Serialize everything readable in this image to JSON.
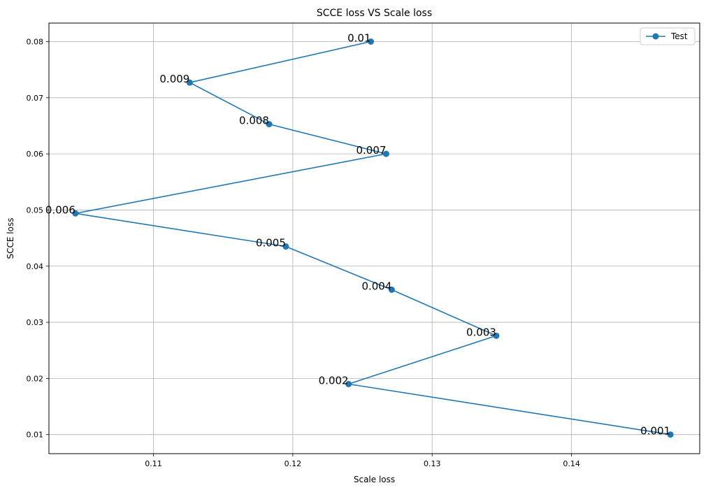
{
  "chart_data": {
    "type": "line",
    "title": "SCCE loss VS Scale loss",
    "xlabel": "Scale loss",
    "ylabel": "SCCE loss",
    "xlim": [
      0.1025,
      0.1492
    ],
    "ylim": [
      0.0066,
      0.0833
    ],
    "xticks": [
      0.11,
      0.12,
      0.13,
      0.14
    ],
    "yticks": [
      0.01,
      0.02,
      0.03,
      0.04,
      0.05,
      0.06,
      0.07,
      0.08
    ],
    "xtick_labels": [
      "0.11",
      "0.12",
      "0.13",
      "0.14"
    ],
    "ytick_labels": [
      "0.01",
      "0.02",
      "0.03",
      "0.04",
      "0.05",
      "0.06",
      "0.07",
      "0.08"
    ],
    "grid": true,
    "legend_position": "top-right",
    "series": [
      {
        "name": "Test",
        "color": "#1f77b4",
        "marker": "circle",
        "x": [
          0.1471,
          0.124,
          0.1346,
          0.1271,
          0.1195,
          0.1044,
          0.1267,
          0.1183,
          0.1126,
          0.1256
        ],
        "y": [
          0.01,
          0.019,
          0.0276,
          0.0358,
          0.0435,
          0.0494,
          0.06,
          0.0653,
          0.0727,
          0.08
        ],
        "point_labels": [
          "0.001",
          "0.002",
          "0.003",
          "0.004",
          "0.005",
          "0.006",
          "0.007",
          "0.008",
          "0.009",
          "0.01"
        ]
      }
    ]
  }
}
